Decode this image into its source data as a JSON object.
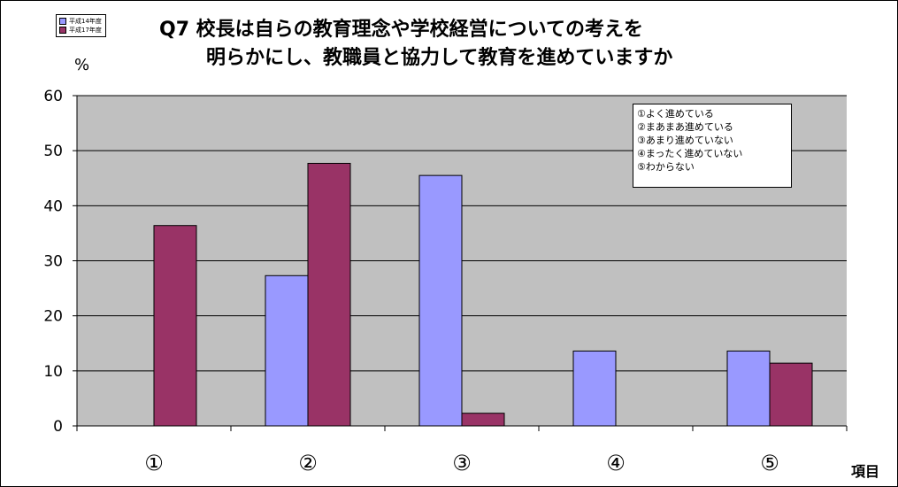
{
  "chart_data": {
    "type": "bar",
    "title_line1": "Q7  校長は自らの教育理念や学校経営についての考えを",
    "title_line2": "明らかにし、教職員と協力して教育を進めていますか",
    "ylabel": "%",
    "xlabel": "項目",
    "categories": [
      "①",
      "②",
      "③",
      "④",
      "⑤"
    ],
    "ylim": [
      0,
      60
    ],
    "yticks": [
      0,
      10,
      20,
      30,
      40,
      50,
      60
    ],
    "grid": true,
    "legend_position": "top-left",
    "series": [
      {
        "name": "平成14年度",
        "values": [
          0,
          27.3,
          45.5,
          13.6,
          13.6
        ],
        "color": "#9999ff"
      },
      {
        "name": "平成17年度",
        "values": [
          36.4,
          47.7,
          2.3,
          0,
          11.4
        ],
        "color": "#993366"
      }
    ],
    "plot_background": "#c0c0c0",
    "answer_key": [
      "①よく進めている",
      "②まあまあ進めている",
      "③あまり進めていない",
      "④まったく進めていない",
      "⑤わからない"
    ]
  }
}
